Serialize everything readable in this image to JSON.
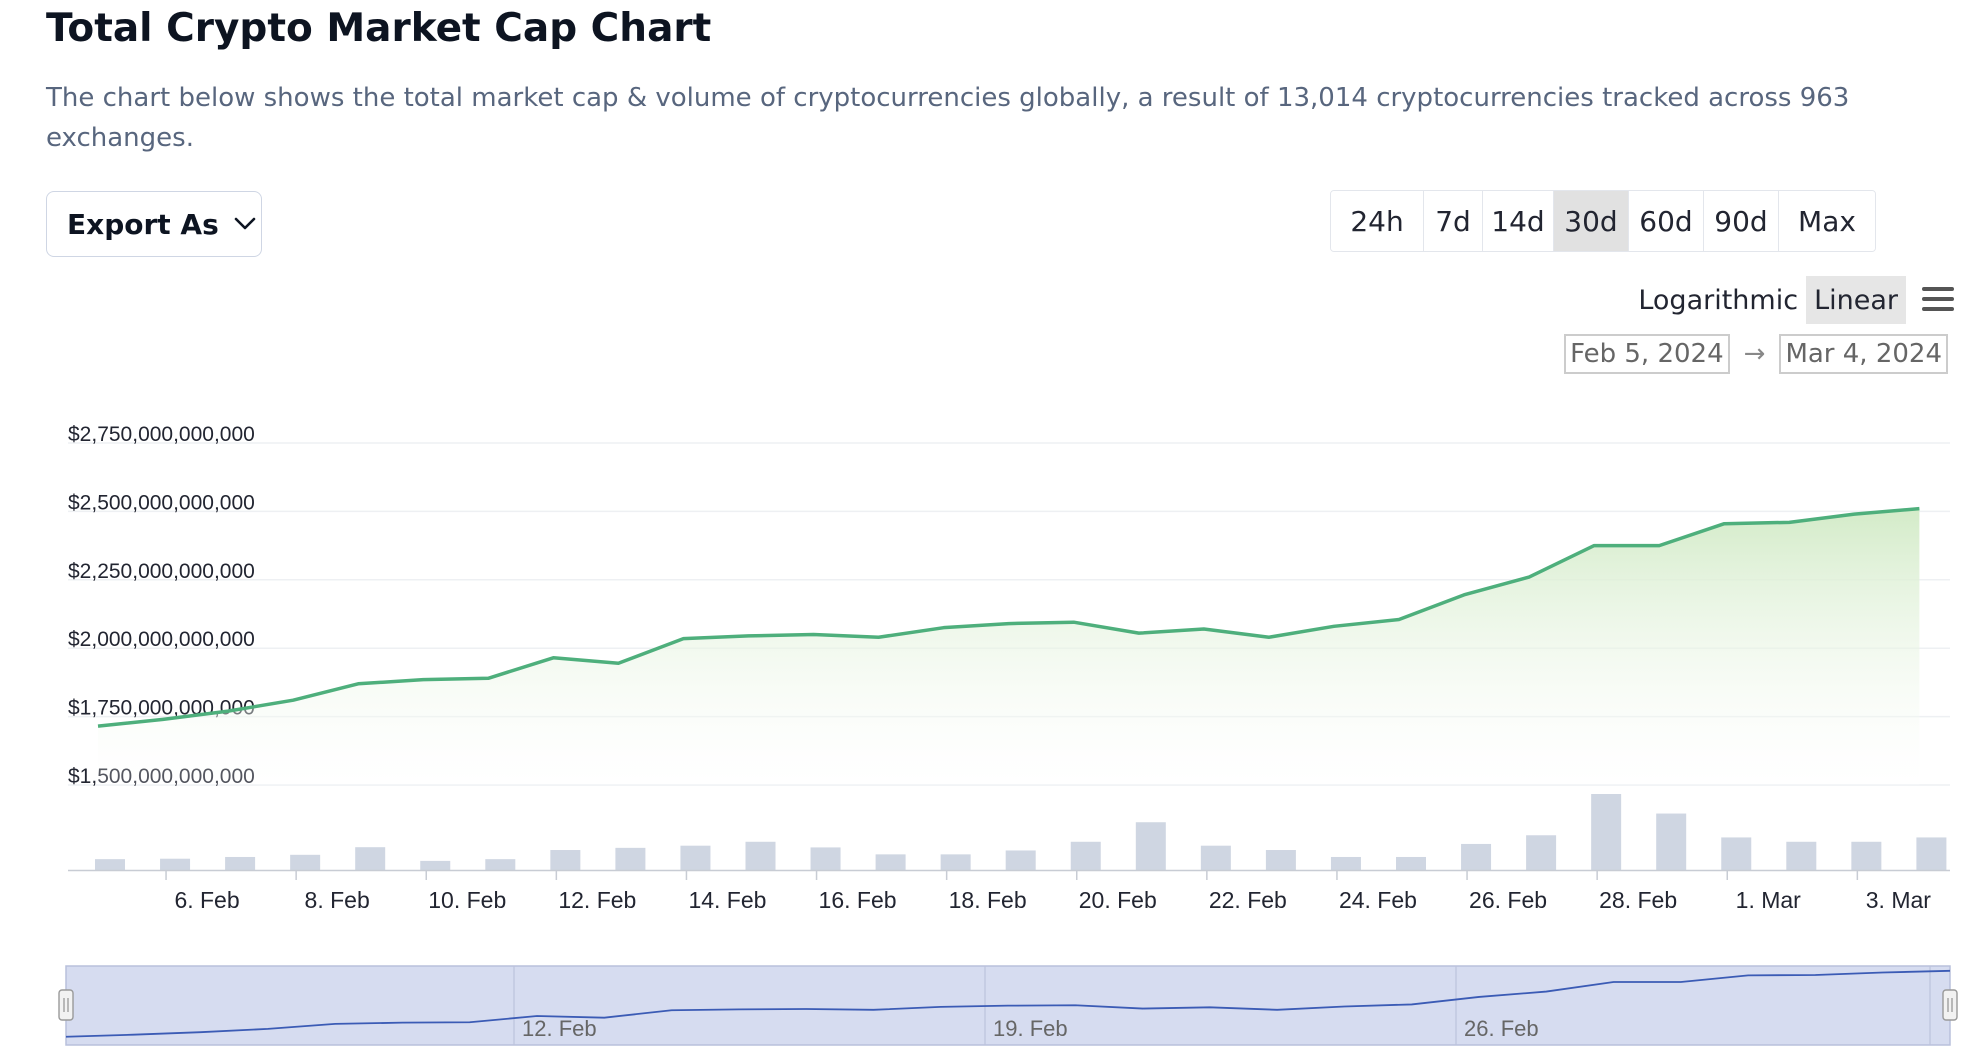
{
  "header": {
    "title": "Total Crypto Market Cap Chart",
    "description": "The chart below shows the total market cap & volume of cryptocurrencies globally, a result of 13,014 cryptocurrencies tracked across 963 exchanges."
  },
  "toolbar": {
    "export_label": "Export As",
    "ranges": [
      "24h",
      "7d",
      "14d",
      "30d",
      "60d",
      "90d",
      "Max"
    ],
    "active_range": "30d",
    "scale_options": [
      "Logarithmic",
      "Linear"
    ],
    "active_scale": "Linear",
    "date_from": "Feb 5, 2024",
    "date_arrow": "→",
    "date_to": "Mar 4, 2024"
  },
  "colors": {
    "line": "#4eaf7c",
    "area_top": "#d3ebc8",
    "volume_bar": "#cfd6e2",
    "navigator_fill": "#d6dcf0",
    "navigator_line": "#3b5bb5"
  },
  "icons": [
    "chevron-down-icon",
    "hamburger-menu-icon",
    "navigator-handle-icon"
  ],
  "chart_data": {
    "type": "line",
    "title": "",
    "xlabel": "",
    "ylabel": "",
    "ylim": [
      1500000000000,
      2750000000000
    ],
    "y_ticks": [
      "$2,750,000,000,000",
      "$2,500,000,000,000",
      "$2,250,000,000,000",
      "$2,000,000,000,000",
      "$1,750,000,000,000",
      "$1,500,000,000,000"
    ],
    "x_ticks": [
      "6. Feb",
      "8. Feb",
      "10. Feb",
      "12. Feb",
      "14. Feb",
      "16. Feb",
      "18. Feb",
      "20. Feb",
      "22. Feb",
      "24. Feb",
      "26. Feb",
      "28. Feb",
      "1. Mar",
      "3. Mar"
    ],
    "grid": true,
    "legend": "none",
    "x": [
      "2024-02-05",
      "2024-02-06",
      "2024-02-07",
      "2024-02-08",
      "2024-02-09",
      "2024-02-10",
      "2024-02-11",
      "2024-02-12",
      "2024-02-13",
      "2024-02-14",
      "2024-02-15",
      "2024-02-16",
      "2024-02-17",
      "2024-02-18",
      "2024-02-19",
      "2024-02-20",
      "2024-02-21",
      "2024-02-22",
      "2024-02-23",
      "2024-02-24",
      "2024-02-25",
      "2024-02-26",
      "2024-02-27",
      "2024-02-28",
      "2024-02-29",
      "2024-03-01",
      "2024-03-02",
      "2024-03-03",
      "2024-03-04"
    ],
    "series": [
      {
        "type": "line",
        "values": [
          1715000000000,
          1740000000000,
          1770000000000,
          1810000000000,
          1870000000000,
          1885000000000,
          1890000000000,
          1965000000000,
          1945000000000,
          2035000000000,
          2045000000000,
          2050000000000,
          2040000000000,
          2075000000000,
          2090000000000,
          2095000000000,
          2055000000000,
          2070000000000,
          2040000000000,
          2080000000000,
          2105000000000,
          2195000000000,
          2260000000000,
          2375000000000,
          2375000000000,
          2455000000000,
          2460000000000,
          2490000000000,
          2510000000000
        ]
      },
      {
        "type": "bar",
        "values": [
          50000000000,
          52000000000,
          60000000000,
          70000000000,
          105000000000,
          42000000000,
          50000000000,
          92000000000,
          102000000000,
          112000000000,
          130000000000,
          104000000000,
          72000000000,
          72000000000,
          90000000000,
          130000000000,
          220000000000,
          112000000000,
          92000000000,
          60000000000,
          60000000000,
          120000000000,
          160000000000,
          350000000000,
          260000000000,
          150000000000,
          130000000000,
          130000000000,
          150000000000
        ]
      }
    ],
    "navigator": {
      "x_ticks": [
        "12. Feb",
        "19. Feb",
        "26. Feb"
      ]
    }
  }
}
